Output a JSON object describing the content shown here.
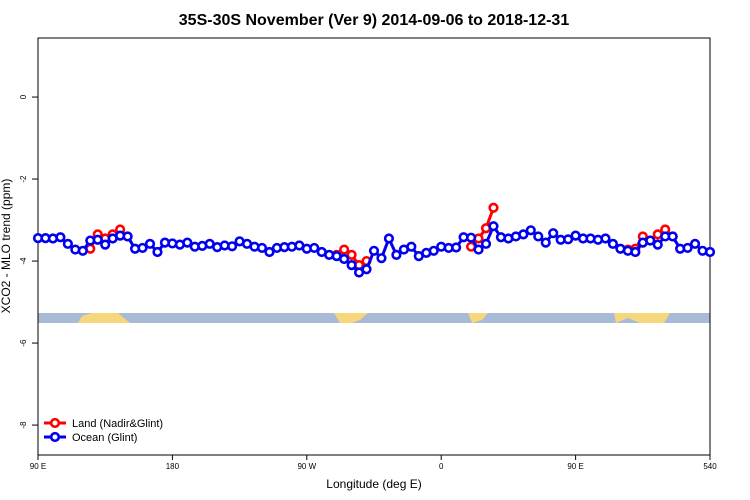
{
  "chart_data": {
    "type": "line",
    "title": "35S-30S November (Ver 9)   2014-09-06 to 2018-12-31",
    "x_label": "Longitude (deg E)",
    "y_label": "XCO2 - MLO trend (ppm)",
    "x": [
      90,
      95,
      100,
      105,
      110,
      115,
      120,
      125,
      130,
      135,
      140,
      145,
      150,
      155,
      160,
      165,
      170,
      175,
      180,
      185,
      190,
      195,
      200,
      205,
      210,
      215,
      220,
      225,
      230,
      235,
      240,
      245,
      250,
      255,
      260,
      265,
      270,
      275,
      280,
      285,
      290,
      295,
      300,
      305,
      310,
      315,
      320,
      325,
      330,
      335,
      340,
      345,
      350,
      355,
      360,
      365,
      370,
      375,
      380,
      385,
      390,
      395,
      400,
      405,
      410,
      415,
      420,
      425,
      430,
      435,
      440,
      445,
      450,
      455,
      460,
      465,
      470,
      475,
      480,
      485,
      490,
      495,
      500,
      505,
      510,
      515,
      520,
      525,
      530,
      535,
      540
    ],
    "series": [
      {
        "name": "Land (Nadir&Glint)",
        "color": "#ff0000",
        "values": [
          null,
          null,
          null,
          null,
          null,
          null,
          null,
          -3.7,
          -3.35,
          -3.45,
          -3.35,
          -3.23,
          -3.4,
          null,
          null,
          null,
          null,
          null,
          null,
          null,
          null,
          null,
          null,
          null,
          null,
          null,
          null,
          null,
          null,
          null,
          null,
          null,
          null,
          null,
          null,
          null,
          null,
          null,
          null,
          null,
          -3.85,
          -3.72,
          -3.85,
          -4.1,
          -4.0,
          null,
          null,
          null,
          null,
          null,
          null,
          null,
          null,
          null,
          null,
          null,
          null,
          null,
          -3.65,
          -3.45,
          -3.2,
          -2.7,
          null,
          null,
          null,
          null,
          null,
          null,
          null,
          null,
          null,
          null,
          null,
          null,
          null,
          null,
          null,
          null,
          null,
          -3.72,
          -3.7,
          -3.4,
          -3.5,
          -3.35,
          -3.23,
          -3.4,
          null,
          null,
          null,
          null,
          null
        ]
      },
      {
        "name": "Ocean (Glint)",
        "color": "#0000ee",
        "values": [
          -3.44,
          -3.44,
          -3.45,
          -3.42,
          -3.58,
          -3.72,
          -3.75,
          -3.5,
          -3.48,
          -3.6,
          -3.45,
          -3.38,
          -3.4,
          -3.7,
          -3.68,
          -3.58,
          -3.78,
          -3.55,
          -3.57,
          -3.6,
          -3.55,
          -3.65,
          -3.63,
          -3.58,
          -3.66,
          -3.62,
          -3.64,
          -3.52,
          -3.58,
          -3.65,
          -3.68,
          -3.78,
          -3.68,
          -3.66,
          -3.65,
          -3.62,
          -3.7,
          -3.68,
          -3.78,
          -3.85,
          -3.88,
          -3.95,
          -4.1,
          -4.28,
          -4.2,
          -3.75,
          -3.93,
          -3.45,
          -3.85,
          -3.72,
          -3.65,
          -3.88,
          -3.8,
          -3.75,
          -3.65,
          -3.68,
          -3.67,
          -3.42,
          -3.43,
          -3.72,
          -3.58,
          -3.15,
          -3.42,
          -3.45,
          -3.4,
          -3.35,
          -3.25,
          -3.4,
          -3.55,
          -3.32,
          -3.48,
          -3.47,
          -3.38,
          -3.45,
          -3.45,
          -3.48,
          -3.45,
          -3.58,
          -3.7,
          -3.75,
          -3.78,
          -3.55,
          -3.5,
          -3.6,
          -3.4,
          -3.4,
          -3.7,
          -3.68,
          -3.58,
          -3.75,
          -3.78
        ]
      }
    ],
    "xlim": [
      90,
      540
    ],
    "xticks": [
      {
        "value": 90,
        "label": "90 E"
      },
      180,
      {
        "value": 270,
        "label": "90 W"
      },
      {
        "value": 360,
        "label": "0"
      },
      {
        "value": 450,
        "label": "90 E"
      },
      540
    ],
    "ylim": [
      -8.73,
      1.44
    ],
    "yticks": [
      0,
      -2,
      -4,
      -6,
      -8
    ],
    "legend": "bottom-left"
  }
}
